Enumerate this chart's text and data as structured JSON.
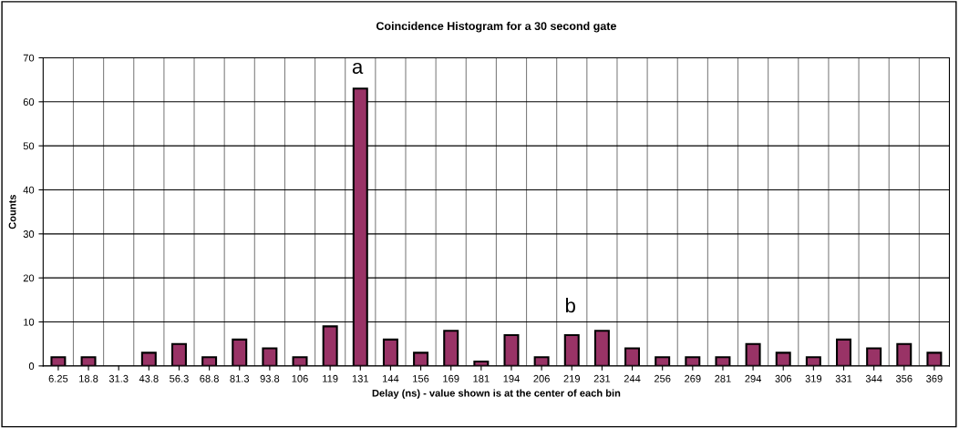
{
  "chart_data": {
    "type": "bar",
    "title": "Coincidence Histogram for a 30 second gate",
    "xlabel": "Delay (ns) - value shown is at the center of each bin",
    "ylabel": "Counts",
    "categories": [
      "6.25",
      "18.8",
      "31.3",
      "43.8",
      "56.3",
      "68.8",
      "81.3",
      "93.8",
      "106",
      "119",
      "131",
      "144",
      "156",
      "169",
      "181",
      "194",
      "206",
      "219",
      "231",
      "244",
      "256",
      "269",
      "281",
      "294",
      "306",
      "319",
      "331",
      "344",
      "356",
      "369"
    ],
    "values": [
      2,
      2,
      0,
      3,
      5,
      2,
      6,
      4,
      2,
      9,
      63,
      6,
      3,
      8,
      1,
      7,
      2,
      7,
      8,
      4,
      2,
      2,
      2,
      5,
      3,
      2,
      6,
      4,
      5,
      3
    ],
    "color": "#993366",
    "ylim": [
      0,
      70
    ],
    "yticks": [
      0,
      10,
      20,
      30,
      40,
      50,
      60,
      70
    ],
    "grid": true,
    "legend": false,
    "annotations": [
      "a",
      "b"
    ]
  }
}
